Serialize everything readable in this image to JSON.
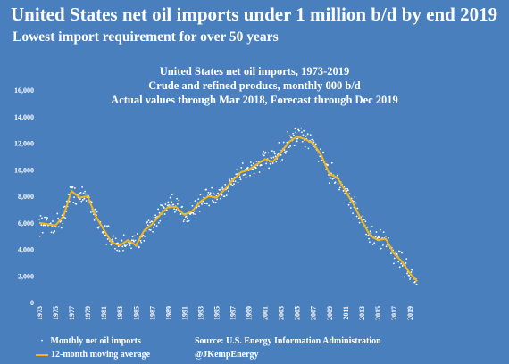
{
  "header": {
    "headline": "United States net oil imports under 1 million b/d by end 2019",
    "subhead": "Lowest import requirement for over 50 years"
  },
  "chart_data": {
    "type": "line",
    "title": [
      "United States net oil imports, 1973-2019",
      "Crude and refined producs, monthly 000 b/d",
      "Actual values through Mar 2018, Forecast through Dec 2019"
    ],
    "xlabel": "",
    "ylabel": "",
    "xlim": [
      1973,
      2020
    ],
    "ylim": [
      0,
      16000
    ],
    "y_ticks": [
      "0",
      "2,000",
      "4,000",
      "6,000",
      "8,000",
      "10,000",
      "12,000",
      "14,000",
      "16,000"
    ],
    "x_ticks": [
      "1973",
      "1975",
      "1977",
      "1979",
      "1981",
      "1983",
      "1985",
      "1987",
      "1989",
      "1991",
      "1993",
      "1995",
      "1997",
      "1999",
      "2001",
      "2003",
      "2005",
      "2007",
      "2009",
      "2011",
      "2013",
      "2015",
      "2017",
      "2019"
    ],
    "grid": false,
    "legend_position": "bottom-left",
    "series": [
      {
        "name": "12-month moving average",
        "kind": "line",
        "color": "#f2b61a",
        "points": [
          [
            1973,
            6000
          ],
          [
            1974,
            5900
          ],
          [
            1975,
            5800
          ],
          [
            1976,
            6500
          ],
          [
            1977,
            8400
          ],
          [
            1978,
            7900
          ],
          [
            1979,
            8000
          ],
          [
            1980,
            6500
          ],
          [
            1981,
            5500
          ],
          [
            1982,
            4500
          ],
          [
            1983,
            4300
          ],
          [
            1984,
            4700
          ],
          [
            1985,
            4300
          ],
          [
            1986,
            5400
          ],
          [
            1987,
            5900
          ],
          [
            1988,
            6600
          ],
          [
            1989,
            7200
          ],
          [
            1990,
            7200
          ],
          [
            1991,
            6600
          ],
          [
            1992,
            6900
          ],
          [
            1993,
            7600
          ],
          [
            1994,
            8000
          ],
          [
            1995,
            7900
          ],
          [
            1996,
            8500
          ],
          [
            1997,
            9200
          ],
          [
            1998,
            9800
          ],
          [
            1999,
            10000
          ],
          [
            2000,
            10400
          ],
          [
            2001,
            10800
          ],
          [
            2002,
            10600
          ],
          [
            2003,
            11300
          ],
          [
            2004,
            12100
          ],
          [
            2005,
            12500
          ],
          [
            2006,
            12300
          ],
          [
            2007,
            12000
          ],
          [
            2008,
            11100
          ],
          [
            2009,
            9700
          ],
          [
            2010,
            9400
          ],
          [
            2011,
            8400
          ],
          [
            2012,
            7400
          ],
          [
            2013,
            6200
          ],
          [
            2014,
            5100
          ],
          [
            2015,
            4700
          ],
          [
            2016,
            4800
          ],
          [
            2017,
            3700
          ],
          [
            2018,
            3100
          ],
          [
            2019,
            2200
          ],
          [
            2019.9,
            1600
          ]
        ]
      },
      {
        "name": "Monthly net oil imports",
        "kind": "scatter",
        "color": "#ffffff",
        "spread": 550
      }
    ]
  },
  "legend": {
    "monthly_label": "Monthly net oil imports",
    "avg_label": "12-month moving average"
  },
  "source": {
    "line1": "Source: U.S. Energy Information Administration",
    "line2": "@JKempEnergy"
  }
}
